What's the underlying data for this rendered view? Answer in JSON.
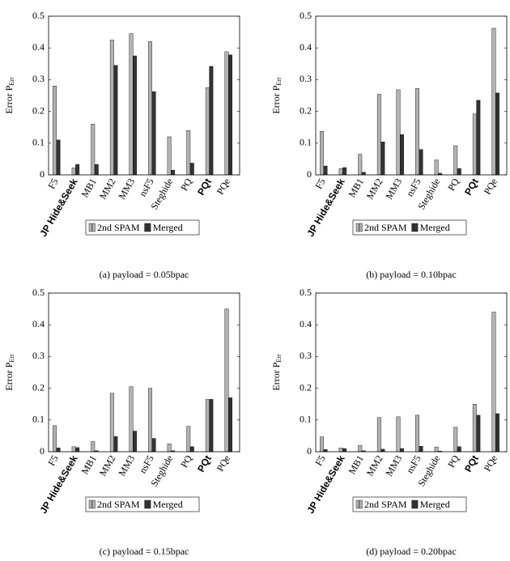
{
  "chart_data": [
    {
      "type": "bar",
      "caption": "(a)  payload = 0.05bpac",
      "ylabel": "Error P",
      "ylabel_sub": "Err",
      "categories": [
        "F5",
        "JP Hide&Seek",
        "MB1",
        "MM2",
        "MM3",
        "nsF5",
        "Steghide",
        "PQ",
        "PQt",
        "PQe"
      ],
      "bold": [
        1,
        8
      ],
      "series": [
        {
          "name": "2nd SPAM",
          "color": "#b3b3b3",
          "values": [
            0.28,
            0.022,
            0.16,
            0.425,
            0.445,
            0.42,
            0.12,
            0.14,
            0.275,
            0.388
          ]
        },
        {
          "name": "Merged",
          "color": "#333333",
          "values": [
            0.11,
            0.033,
            0.033,
            0.345,
            0.375,
            0.262,
            0.015,
            0.037,
            0.342,
            0.378
          ]
        }
      ],
      "ylim": [
        0,
        0.5
      ],
      "yticks": [
        0,
        0.1,
        0.2,
        0.3,
        0.4,
        0.5
      ]
    },
    {
      "type": "bar",
      "caption": "(b)  payload = 0.10bpac",
      "ylabel": "Error P",
      "ylabel_sub": "Err",
      "categories": [
        "F5",
        "JP Hide&Seek",
        "MB1",
        "MM2",
        "MM3",
        "nsF5",
        "Steghide",
        "PQ",
        "PQt",
        "PQe"
      ],
      "bold": [
        1,
        8
      ],
      "series": [
        {
          "name": "2nd SPAM",
          "color": "#b3b3b3",
          "values": [
            0.137,
            0.02,
            0.065,
            0.254,
            0.268,
            0.272,
            0.047,
            0.092,
            0.192,
            0.462
          ]
        },
        {
          "name": "Merged",
          "color": "#333333",
          "values": [
            0.028,
            0.023,
            0.008,
            0.104,
            0.127,
            0.08,
            0.005,
            0.02,
            0.235,
            0.258
          ]
        }
      ],
      "ylim": [
        0,
        0.5
      ],
      "yticks": [
        0,
        0.1,
        0.2,
        0.3,
        0.4,
        0.5
      ]
    },
    {
      "type": "bar",
      "caption": "(c)  payload = 0.15bpac",
      "ylabel": "Error P",
      "ylabel_sub": "Err",
      "categories": [
        "F5",
        "JP Hide&Seek",
        "MB1",
        "MM2",
        "MM3",
        "nsF5",
        "Steghide",
        "PQ",
        "PQt",
        "PQe"
      ],
      "bold": [
        1,
        8
      ],
      "series": [
        {
          "name": "2nd SPAM",
          "color": "#b3b3b3",
          "values": [
            0.082,
            0.016,
            0.032,
            0.184,
            0.205,
            0.2,
            0.025,
            0.08,
            0.165,
            0.45
          ]
        },
        {
          "name": "Merged",
          "color": "#333333",
          "values": [
            0.012,
            0.013,
            0.003,
            0.048,
            0.065,
            0.042,
            0.003,
            0.016,
            0.165,
            0.17
          ]
        }
      ],
      "ylim": [
        0,
        0.5
      ],
      "yticks": [
        0,
        0.1,
        0.2,
        0.3,
        0.4,
        0.5
      ]
    },
    {
      "type": "bar",
      "caption": "(d)  payload = 0.20bpac",
      "ylabel": "Error P",
      "ylabel_sub": "Err",
      "categories": [
        "F5",
        "JP Hide&Seek",
        "MB1",
        "MM2",
        "MM3",
        "nsF5",
        "Steghide",
        "PQ",
        "PQt",
        "PQe"
      ],
      "bold": [
        1,
        8
      ],
      "series": [
        {
          "name": "2nd SPAM",
          "color": "#b3b3b3",
          "values": [
            0.047,
            0.012,
            0.02,
            0.108,
            0.11,
            0.115,
            0.015,
            0.077,
            0.15,
            0.44
          ]
        },
        {
          "name": "Merged",
          "color": "#333333",
          "values": [
            0.007,
            0.01,
            0.003,
            0.008,
            0.01,
            0.017,
            0.002,
            0.016,
            0.115,
            0.12
          ]
        }
      ],
      "ylim": [
        0,
        0.5
      ],
      "yticks": [
        0,
        0.1,
        0.2,
        0.3,
        0.4,
        0.5
      ]
    }
  ]
}
